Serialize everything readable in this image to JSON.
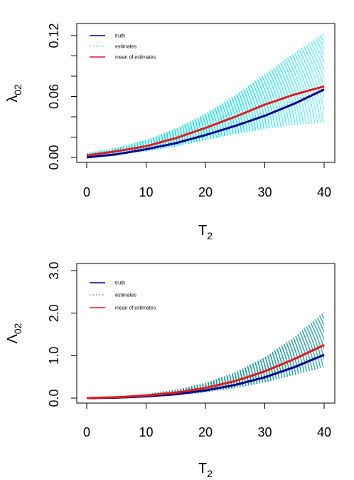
{
  "chart_data": [
    {
      "type": "line",
      "xlabel": "T",
      "xlabel_sub": "2",
      "ylabel": "λ",
      "ylabel_sub": "02",
      "xlim": [
        0,
        40
      ],
      "ylim": [
        0,
        0.12
      ],
      "xticks": [
        "0",
        "10",
        "20",
        "30",
        "40"
      ],
      "yticks": [
        "0.00",
        "0.06",
        "0.12"
      ],
      "legend_position": "top-left",
      "legend": [
        "truth",
        "estimates",
        "mean of estimates"
      ],
      "colors": {
        "truth": "#00008b",
        "estimates": "#00e5ee",
        "mean": "#e31a1c"
      },
      "series": [
        {
          "name": "truth",
          "x": [
            0,
            5,
            10,
            15,
            20,
            25,
            30,
            35,
            40
          ],
          "values": [
            0.0,
            0.003,
            0.008,
            0.014,
            0.022,
            0.031,
            0.041,
            0.053,
            0.067
          ]
        },
        {
          "name": "mean of estimates",
          "x": [
            0,
            5,
            10,
            15,
            20,
            25,
            30,
            35,
            40
          ],
          "values": [
            0.002,
            0.006,
            0.011,
            0.019,
            0.029,
            0.04,
            0.052,
            0.062,
            0.07
          ]
        }
      ],
      "estimates_band": {
        "x": [
          0,
          5,
          10,
          15,
          20,
          25,
          30,
          35,
          40
        ],
        "low": [
          0.0,
          0.003,
          0.006,
          0.011,
          0.017,
          0.023,
          0.028,
          0.032,
          0.034
        ],
        "high": [
          0.004,
          0.009,
          0.017,
          0.028,
          0.043,
          0.061,
          0.082,
          0.103,
          0.123
        ]
      }
    },
    {
      "type": "line",
      "xlabel": "T",
      "xlabel_sub": "2",
      "ylabel": "Λ",
      "ylabel_sub": "02",
      "xlim": [
        0,
        40
      ],
      "ylim": [
        0,
        3.0
      ],
      "xticks": [
        "0",
        "10",
        "20",
        "30",
        "40"
      ],
      "yticks": [
        "0.0",
        "1.0",
        "2.0",
        "3.0"
      ],
      "legend_position": "top-left",
      "legend": [
        "truth",
        "estimates",
        "mean of estimates"
      ],
      "colors": {
        "truth": "#00008b",
        "estimates": "#1a9a9a",
        "mean": "#e31a1c"
      },
      "series": [
        {
          "name": "truth",
          "x": [
            0,
            5,
            10,
            15,
            20,
            25,
            30,
            35,
            40
          ],
          "values": [
            0.0,
            0.01,
            0.04,
            0.09,
            0.18,
            0.31,
            0.49,
            0.73,
            1.02
          ]
        },
        {
          "name": "mean of estimates",
          "x": [
            0,
            5,
            10,
            15,
            20,
            25,
            30,
            35,
            40
          ],
          "values": [
            0.0,
            0.02,
            0.06,
            0.13,
            0.24,
            0.4,
            0.63,
            0.92,
            1.25
          ]
        }
      ],
      "estimates_band": {
        "x": [
          0,
          5,
          10,
          15,
          20,
          25,
          30,
          35,
          40
        ],
        "low": [
          0.0,
          0.01,
          0.03,
          0.07,
          0.14,
          0.24,
          0.37,
          0.54,
          0.73
        ],
        "high": [
          0.0,
          0.03,
          0.09,
          0.19,
          0.35,
          0.6,
          0.96,
          1.44,
          2.03
        ]
      }
    }
  ]
}
